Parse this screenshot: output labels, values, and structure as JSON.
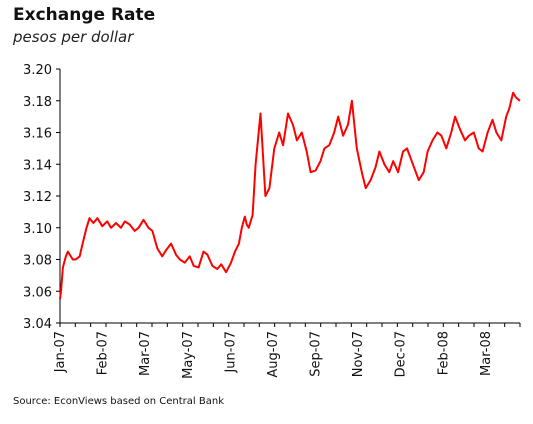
{
  "title": "Exchange Rate",
  "subtitle": "pesos per dollar",
  "source": "Source: EconViews based on Central Bank",
  "chart_data": {
    "type": "line",
    "title": "Exchange Rate",
    "subtitle": "pesos per dollar",
    "xlabel": "",
    "ylabel": "",
    "ylim": [
      3.04,
      3.2
    ],
    "yticks": [
      "3.04",
      "3.06",
      "3.08",
      "3.10",
      "3.12",
      "3.14",
      "3.16",
      "3.18",
      "3.20"
    ],
    "xticks": [
      "Jan-07",
      "Feb-07",
      "Mar-07",
      "May-07",
      "Jun-07",
      "Aug-07",
      "Sep-07",
      "Nov-07",
      "Dec-07",
      "Feb-08",
      "Mar-08"
    ],
    "grid": false,
    "legend": "none",
    "line_color": "#ff0000",
    "series": [
      {
        "x": [
          "2007-01-02",
          "2007-01-03",
          "2007-01-05",
          "2007-01-08",
          "2007-01-10",
          "2007-01-12",
          "2007-01-15",
          "2007-01-18",
          "2007-01-22",
          "2007-01-25",
          "2007-01-29",
          "2007-02-01",
          "2007-02-05",
          "2007-02-09",
          "2007-02-14",
          "2007-02-19",
          "2007-02-23",
          "2007-02-28",
          "2007-03-05",
          "2007-03-09",
          "2007-03-14",
          "2007-03-19",
          "2007-03-23",
          "2007-03-28",
          "2007-04-02",
          "2007-04-06",
          "2007-04-11",
          "2007-04-16",
          "2007-04-20",
          "2007-04-25",
          "2007-04-30",
          "2007-05-04",
          "2007-05-09",
          "2007-05-14",
          "2007-05-18",
          "2007-05-23",
          "2007-05-28",
          "2007-06-01",
          "2007-06-06",
          "2007-06-11",
          "2007-06-15",
          "2007-06-20",
          "2007-06-25",
          "2007-06-29",
          "2007-07-03",
          "2007-07-06",
          "2007-07-09",
          "2007-07-11",
          "2007-07-13",
          "2007-07-17",
          "2007-07-20",
          "2007-07-25",
          "2007-07-30",
          "2007-08-03",
          "2007-08-08",
          "2007-08-13",
          "2007-08-17",
          "2007-08-22",
          "2007-08-27",
          "2007-08-31",
          "2007-09-05",
          "2007-09-10",
          "2007-09-14",
          "2007-09-19",
          "2007-09-24",
          "2007-09-28",
          "2007-10-03",
          "2007-10-08",
          "2007-10-12",
          "2007-10-17",
          "2007-10-22",
          "2007-10-26",
          "2007-10-31",
          "2007-11-05",
          "2007-11-09",
          "2007-11-14",
          "2007-11-19",
          "2007-11-23",
          "2007-11-28",
          "2007-12-03",
          "2007-12-07",
          "2007-12-12",
          "2007-12-17",
          "2007-12-21",
          "2007-12-27",
          "2008-01-02",
          "2008-01-07",
          "2008-01-11",
          "2008-01-16",
          "2008-01-21",
          "2008-01-25",
          "2008-01-30",
          "2008-02-04",
          "2008-02-08",
          "2008-02-13",
          "2008-02-18",
          "2008-02-22",
          "2008-02-27",
          "2008-03-03",
          "2008-03-07",
          "2008-03-12",
          "2008-03-17",
          "2008-03-21",
          "2008-03-26",
          "2008-03-31",
          "2008-04-03",
          "2008-04-07",
          "2008-04-10",
          "2008-04-14"
        ],
        "y": [
          3.055,
          3.06,
          3.075,
          3.082,
          3.085,
          3.083,
          3.08,
          3.08,
          3.082,
          3.09,
          3.1,
          3.106,
          3.103,
          3.106,
          3.101,
          3.104,
          3.1,
          3.103,
          3.1,
          3.104,
          3.102,
          3.098,
          3.1,
          3.105,
          3.1,
          3.098,
          3.087,
          3.082,
          3.086,
          3.09,
          3.083,
          3.08,
          3.078,
          3.082,
          3.076,
          3.075,
          3.085,
          3.083,
          3.076,
          3.074,
          3.077,
          3.072,
          3.078,
          3.085,
          3.09,
          3.1,
          3.107,
          3.102,
          3.1,
          3.108,
          3.14,
          3.172,
          3.12,
          3.125,
          3.15,
          3.16,
          3.152,
          3.172,
          3.165,
          3.155,
          3.16,
          3.148,
          3.135,
          3.136,
          3.142,
          3.15,
          3.152,
          3.16,
          3.17,
          3.158,
          3.165,
          3.18,
          3.15,
          3.135,
          3.125,
          3.13,
          3.138,
          3.148,
          3.14,
          3.135,
          3.142,
          3.135,
          3.148,
          3.15,
          3.14,
          3.13,
          3.135,
          3.148,
          3.155,
          3.16,
          3.158,
          3.15,
          3.16,
          3.17,
          3.162,
          3.155,
          3.158,
          3.16,
          3.15,
          3.148,
          3.16,
          3.168,
          3.16,
          3.155,
          3.17,
          3.175,
          3.185,
          3.182,
          3.18
        ]
      }
    ]
  }
}
